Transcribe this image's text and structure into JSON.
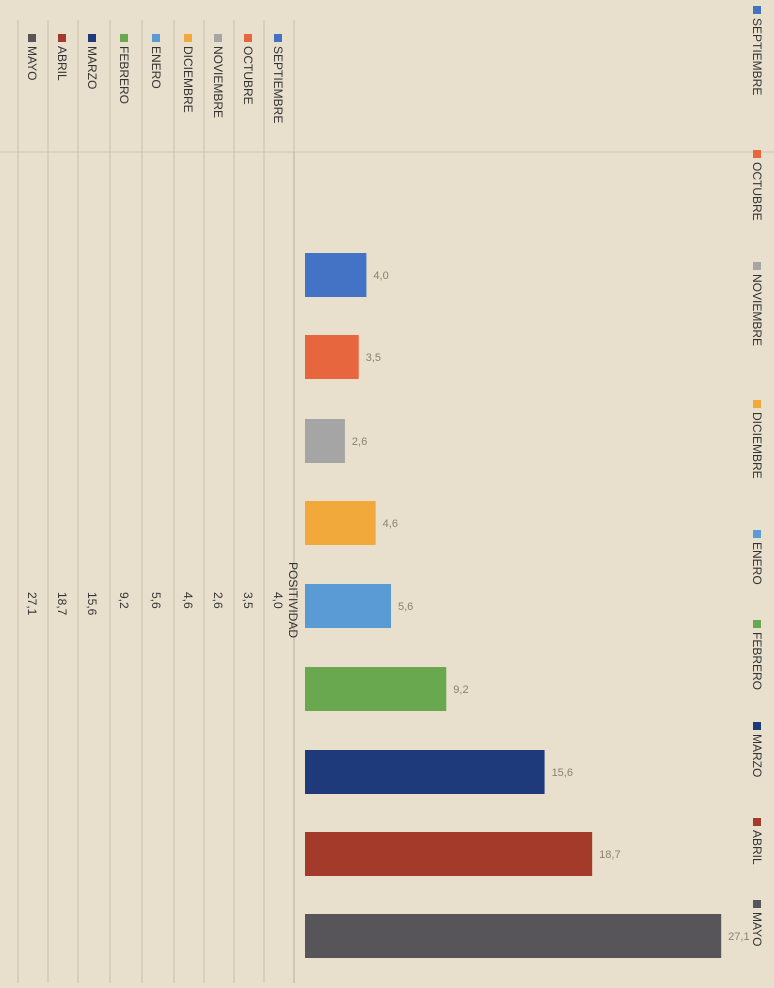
{
  "chart_data": {
    "type": "bar",
    "orientation": "horizontal",
    "categories": [
      "SEPTIEMBRE",
      "OCTUBRE",
      "NOVIEMBRE",
      "DICIEMBRE",
      "ENERO",
      "FEBRERO",
      "MARZO",
      "ABRIL",
      "MAYO"
    ],
    "legend_labels": [
      "SEPTIEMBRE",
      "OCTUBRE",
      "NOVIEMBRE",
      "DICIEMBRE",
      "ENERO",
      "FEBRERO",
      "MARZO",
      "ABRIL",
      "MAYO"
    ],
    "values": [
      4.0,
      3.5,
      2.6,
      4.6,
      5.6,
      9.2,
      15.6,
      18.7,
      27.1
    ],
    "value_labels": [
      "4,0",
      "3,5",
      "2,6",
      "4,6",
      "5,6",
      "9,2",
      "15,6",
      "18,7",
      "27,1"
    ],
    "colors": [
      "#4472c4",
      "#e8663d",
      "#a5a5a5",
      "#f2a93b",
      "#5b9bd5",
      "#6aa84f",
      "#1f3a7a",
      "#a33a2a",
      "#58555a"
    ],
    "xlim": [
      0,
      28
    ],
    "grid": false,
    "legend_position": "right",
    "table": {
      "header": "POSITIVIDAD",
      "rows": [
        {
          "label": "SEPTIEMBRE",
          "value": "4,0"
        },
        {
          "label": "OCTUBRE",
          "value": "3,5"
        },
        {
          "label": "NOVIEMBRE",
          "value": "2,6"
        },
        {
          "label": "DICIEMBRE",
          "value": "4,6"
        },
        {
          "label": "ENERO",
          "value": "5,6"
        },
        {
          "label": "FEBRERO",
          "value": "9,2"
        },
        {
          "label": "MARZO",
          "value": "15,6"
        },
        {
          "label": "ABRIL",
          "value": "18,7"
        },
        {
          "label": "MAYO",
          "value": "27,1"
        }
      ]
    }
  }
}
